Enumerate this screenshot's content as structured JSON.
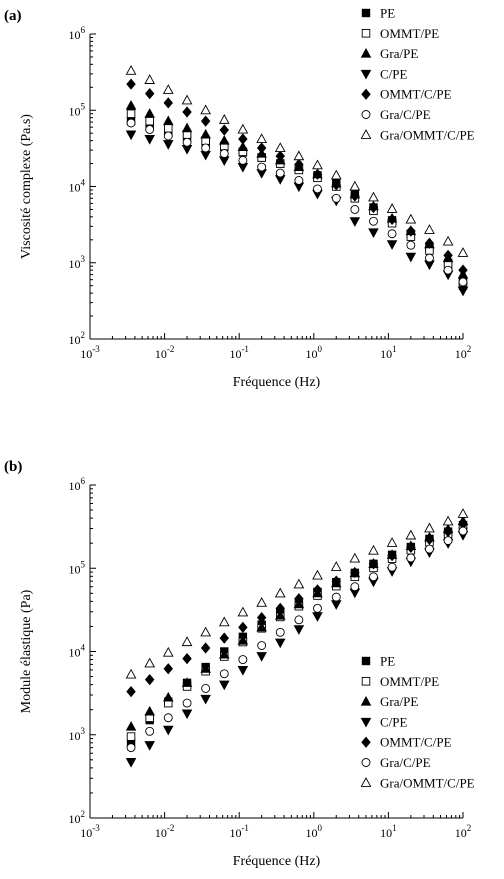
{
  "chart_data": [
    {
      "panel_label": "(a)",
      "type": "scatter",
      "xscale": "log",
      "yscale": "log",
      "xlabel": "Fréquence (Hz)",
      "ylabel": "Viscosité complexe (Pa.s)",
      "xlim": [
        0.001,
        100
      ],
      "ylim": [
        100,
        1000000
      ],
      "x_ticks": [
        "10-3",
        "10-2",
        "10-1",
        "100",
        "101",
        "102"
      ],
      "y_ticks": [
        "102",
        "103",
        "104",
        "105",
        "106"
      ],
      "legend_position": "top-right",
      "grid": false,
      "x": [
        0.00355,
        0.00631,
        0.0112,
        0.02,
        0.0355,
        0.0631,
        0.112,
        0.2,
        0.355,
        0.631,
        1.12,
        2,
        3.55,
        6.31,
        11.2,
        20,
        35.5,
        63.1,
        100
      ],
      "series": [
        {
          "name": "PE",
          "marker": "square-filled",
          "values": [
            72000,
            62000,
            52000,
            44000,
            38000,
            33000,
            28000,
            24000,
            20000,
            17000,
            14000,
            11500,
            7800,
            5300,
            3600,
            2400,
            1600,
            1000,
            500
          ]
        },
        {
          "name": "OMMT/PE",
          "marker": "square-open",
          "values": [
            90000,
            72000,
            58000,
            48000,
            40000,
            34000,
            28500,
            24000,
            20000,
            16500,
            13000,
            10000,
            7000,
            4800,
            3300,
            2200,
            1450,
            950,
            550
          ]
        },
        {
          "name": "Gra/PE",
          "marker": "triangle-up-filled",
          "values": [
            115000,
            90000,
            72000,
            58000,
            48000,
            40000,
            33000,
            27000,
            22000,
            18000,
            14500,
            11000,
            7900,
            5500,
            3800,
            2600,
            1750,
            1150,
            700
          ]
        },
        {
          "name": "C/PE",
          "marker": "triangle-down-filled",
          "values": [
            48000,
            42000,
            36000,
            31000,
            26000,
            22000,
            18000,
            15000,
            12500,
            10000,
            8000,
            6500,
            3500,
            2500,
            1750,
            1200,
            950,
            700,
            430
          ]
        },
        {
          "name": "OMMT/C/PE",
          "marker": "diamond-filled",
          "values": [
            220000,
            165000,
            125000,
            95000,
            72000,
            55000,
            42000,
            32000,
            25000,
            19500,
            14500,
            10500,
            7500,
            5300,
            3700,
            2600,
            1800,
            1250,
            800
          ]
        },
        {
          "name": "Gra/C/PE",
          "marker": "circle-open",
          "values": [
            68000,
            56000,
            46000,
            38000,
            32000,
            27000,
            22000,
            18000,
            15000,
            12000,
            9300,
            7000,
            5000,
            3500,
            2400,
            1700,
            1150,
            800,
            560
          ]
        },
        {
          "name": "Gra/OMMT/C/PE",
          "marker": "triangle-up-open",
          "values": [
            330000,
            250000,
            185000,
            135000,
            100000,
            75000,
            56000,
            42000,
            32000,
            25000,
            19000,
            14000,
            10000,
            7200,
            5100,
            3700,
            2700,
            1900,
            1350
          ]
        }
      ]
    },
    {
      "panel_label": "(b)",
      "type": "scatter",
      "xscale": "log",
      "yscale": "log",
      "xlabel": "Fréquence (Hz)",
      "ylabel": "Module élastique (Pa)",
      "xlim": [
        0.001,
        100
      ],
      "ylim": [
        100,
        1000000
      ],
      "x_ticks": [
        "10-3",
        "10-2",
        "10-1",
        "100",
        "101",
        "102"
      ],
      "y_ticks": [
        "102",
        "103",
        "104",
        "105",
        "106"
      ],
      "legend_position": "center-right",
      "grid": false,
      "x": [
        0.00355,
        0.00631,
        0.0112,
        0.02,
        0.0355,
        0.0631,
        0.112,
        0.2,
        0.355,
        0.631,
        1.12,
        2,
        3.55,
        6.31,
        11.2,
        20,
        35.5,
        63.1,
        100
      ],
      "series": [
        {
          "name": "PE",
          "marker": "square-filled",
          "values": [
            800,
            1500,
            2500,
            4200,
            6500,
            10000,
            15000,
            21000,
            29000,
            39000,
            52000,
            68000,
            88000,
            113000,
            145000,
            180000,
            225000,
            275000,
            330000
          ]
        },
        {
          "name": "OMMT/PE",
          "marker": "square-open",
          "values": [
            950,
            1600,
            2400,
            3800,
            5800,
            8700,
            13000,
            19000,
            26000,
            35000,
            47000,
            61000,
            79000,
            101000,
            130000,
            165000,
            205000,
            255000,
            310000
          ]
        },
        {
          "name": "Gra/PE",
          "marker": "triangle-up-filled",
          "values": [
            1250,
            1900,
            2800,
            4200,
            6200,
            9200,
            13500,
            19500,
            27000,
            37000,
            50000,
            66000,
            87000,
            112000,
            145000,
            185000,
            235000,
            295000,
            370000
          ]
        },
        {
          "name": "C/PE",
          "marker": "triangle-down-filled",
          "values": [
            470,
            750,
            1150,
            1800,
            2700,
            4000,
            6000,
            8800,
            12800,
            18500,
            26500,
            37000,
            51000,
            69000,
            92000,
            120000,
            155000,
            200000,
            250000
          ]
        },
        {
          "name": "OMMT/C/PE",
          "marker": "diamond-filled",
          "values": [
            3300,
            4600,
            6200,
            8200,
            11000,
            14500,
            19500,
            25500,
            33000,
            43000,
            55000,
            70000,
            89000,
            113000,
            142000,
            178000,
            222000,
            275000,
            340000
          ]
        },
        {
          "name": "Gra/C/PE",
          "marker": "circle-open",
          "values": [
            700,
            1100,
            1600,
            2400,
            3600,
            5400,
            8000,
            11800,
            17000,
            24000,
            33000,
            45000,
            60000,
            79000,
            103000,
            133000,
            170000,
            215000,
            280000
          ]
        },
        {
          "name": "Gra/OMMT/C/PE",
          "marker": "triangle-up-open",
          "values": [
            5300,
            7200,
            9700,
            13000,
            17000,
            22500,
            29500,
            38500,
            50000,
            64000,
            82000,
            104000,
            131000,
            163000,
            202000,
            248000,
            302000,
            366000,
            450000
          ]
        }
      ]
    }
  ]
}
